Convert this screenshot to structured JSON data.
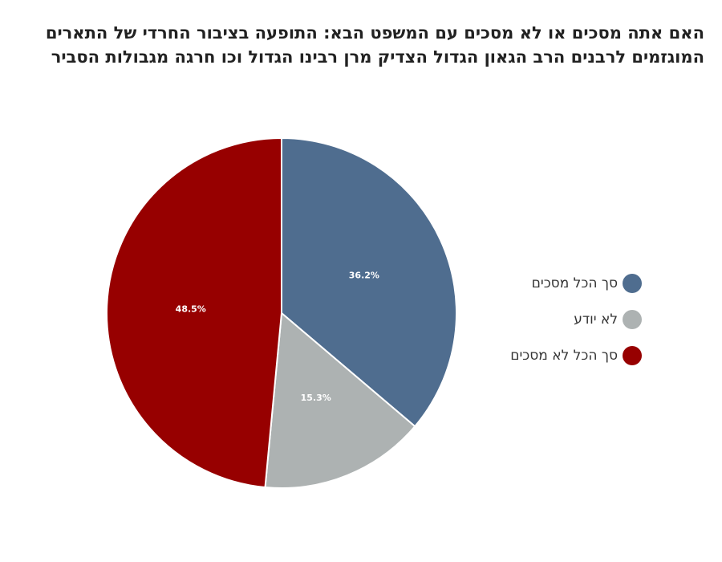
{
  "chart_data": {
    "type": "pie",
    "title": "האם אתה מסכים או לא מסכים עם המשפט הבא: התופעה בציבור החרדי של התארים המוגזמים לרבנים הרב הגאון הגדול הצדיק מרן רבינו הגדול וכו חרגה מגבולות הסביר",
    "slices": [
      {
        "label": "סך הכל מסכים",
        "value": 36.2,
        "display": "36.2%",
        "color": "#4f6d8f"
      },
      {
        "label": "לא יודע",
        "value": 15.3,
        "display": "15.3%",
        "color": "#adb2b2"
      },
      {
        "label": "סך הכל לא מסכים",
        "value": 48.5,
        "display": "48.5%",
        "color": "#970000"
      }
    ],
    "legend_position": "right"
  }
}
